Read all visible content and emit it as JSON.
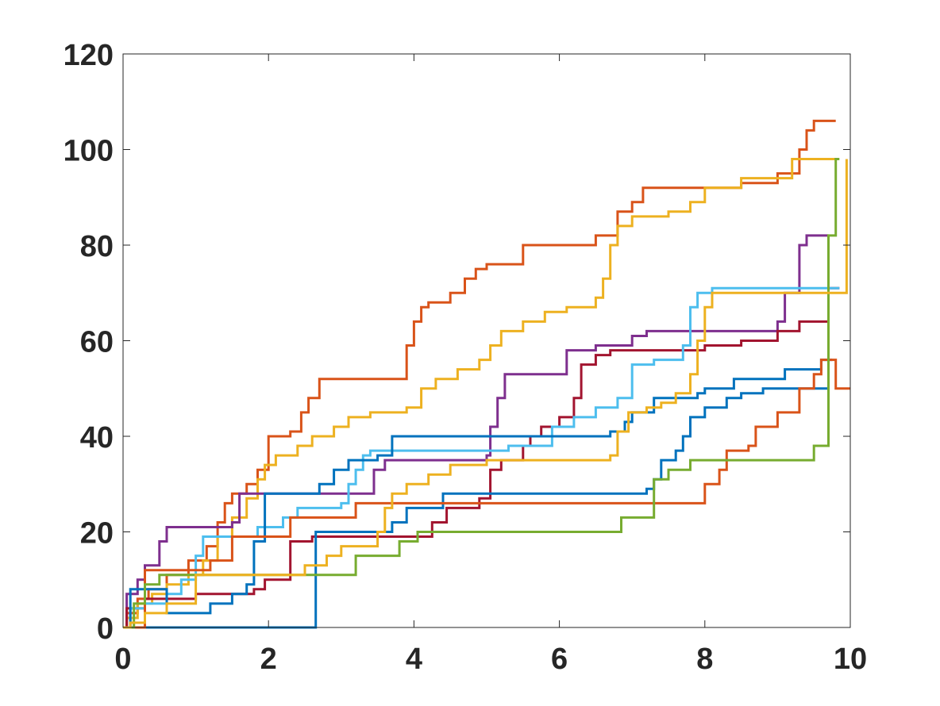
{
  "chart_data": {
    "type": "line",
    "title": "",
    "xlabel": "",
    "ylabel": "",
    "xlim": [
      0,
      10
    ],
    "ylim": [
      0,
      120
    ],
    "grid": false,
    "legend": "none",
    "x_ticks": [
      "0",
      "2",
      "4",
      "6",
      "8",
      "10"
    ],
    "y_ticks": [
      "0",
      "20",
      "40",
      "60",
      "80",
      "100",
      "120"
    ],
    "series": [
      {
        "color": "#D95319",
        "step": true,
        "points": [
          [
            0,
            0
          ],
          [
            0.05,
            3
          ],
          [
            0.2,
            6
          ],
          [
            0.35,
            8
          ],
          [
            0.6,
            11
          ],
          [
            0.9,
            14
          ],
          [
            1.15,
            17
          ],
          [
            1.3,
            22
          ],
          [
            1.4,
            26
          ],
          [
            1.5,
            28
          ],
          [
            1.7,
            30
          ],
          [
            1.85,
            33
          ],
          [
            2.0,
            40
          ],
          [
            2.3,
            41
          ],
          [
            2.45,
            45
          ],
          [
            2.55,
            48
          ],
          [
            2.7,
            52
          ],
          [
            3.35,
            52
          ],
          [
            3.9,
            59
          ],
          [
            4.0,
            64
          ],
          [
            4.1,
            67
          ],
          [
            4.2,
            68
          ],
          [
            4.5,
            70
          ],
          [
            4.7,
            73
          ],
          [
            4.85,
            75
          ],
          [
            5.0,
            76
          ],
          [
            5.5,
            80
          ],
          [
            6.5,
            82
          ],
          [
            6.8,
            87
          ],
          [
            7.0,
            89
          ],
          [
            7.15,
            92
          ],
          [
            7.5,
            92
          ],
          [
            8.5,
            93
          ],
          [
            9.0,
            95
          ],
          [
            9.3,
            100
          ],
          [
            9.4,
            104
          ],
          [
            9.5,
            106
          ],
          [
            9.8,
            106
          ]
        ]
      },
      {
        "color": "#EDB120",
        "step": true,
        "points": [
          [
            0,
            0
          ],
          [
            0.05,
            2
          ],
          [
            0.2,
            5
          ],
          [
            0.4,
            7
          ],
          [
            0.6,
            9
          ],
          [
            0.9,
            11
          ],
          [
            1.1,
            14
          ],
          [
            1.3,
            19
          ],
          [
            1.5,
            23
          ],
          [
            1.7,
            27
          ],
          [
            1.85,
            31
          ],
          [
            1.95,
            34
          ],
          [
            2.1,
            36
          ],
          [
            2.4,
            38
          ],
          [
            2.6,
            40
          ],
          [
            2.9,
            42
          ],
          [
            3.1,
            44
          ],
          [
            3.4,
            45
          ],
          [
            3.9,
            46
          ],
          [
            4.1,
            50
          ],
          [
            4.3,
            52
          ],
          [
            4.6,
            54
          ],
          [
            4.9,
            56
          ],
          [
            5.05,
            59
          ],
          [
            5.2,
            62
          ],
          [
            5.5,
            64
          ],
          [
            5.8,
            66
          ],
          [
            6.1,
            67
          ],
          [
            6.5,
            69
          ],
          [
            6.6,
            73
          ],
          [
            6.7,
            80
          ],
          [
            6.8,
            84
          ],
          [
            7.0,
            86
          ],
          [
            7.5,
            87
          ],
          [
            7.8,
            89
          ],
          [
            8.0,
            92
          ],
          [
            8.5,
            94
          ],
          [
            9.2,
            98
          ],
          [
            9.8,
            98
          ]
        ]
      },
      {
        "color": "#7E2F8E",
        "step": true,
        "points": [
          [
            0,
            0
          ],
          [
            0.05,
            7
          ],
          [
            0.2,
            10
          ],
          [
            0.3,
            13
          ],
          [
            0.5,
            18
          ],
          [
            0.6,
            21
          ],
          [
            1.0,
            21
          ],
          [
            1.5,
            22
          ],
          [
            1.6,
            28
          ],
          [
            1.8,
            28
          ],
          [
            3.3,
            28
          ],
          [
            3.45,
            33
          ],
          [
            3.6,
            35
          ],
          [
            5.0,
            36
          ],
          [
            5.05,
            42
          ],
          [
            5.15,
            48
          ],
          [
            5.25,
            53
          ],
          [
            5.9,
            53
          ],
          [
            6.1,
            58
          ],
          [
            6.5,
            59
          ],
          [
            6.6,
            59
          ],
          [
            7.0,
            61
          ],
          [
            7.2,
            62
          ],
          [
            8.0,
            62
          ],
          [
            9.0,
            64
          ],
          [
            9.1,
            70
          ],
          [
            9.3,
            80
          ],
          [
            9.4,
            82
          ],
          [
            9.7,
            82
          ]
        ]
      },
      {
        "color": "#A2142F",
        "step": true,
        "points": [
          [
            0,
            0
          ],
          [
            0.05,
            4
          ],
          [
            0.3,
            6
          ],
          [
            1.0,
            7
          ],
          [
            1.8,
            8
          ],
          [
            1.95,
            10
          ],
          [
            2.3,
            18
          ],
          [
            2.6,
            19
          ],
          [
            4.1,
            19
          ],
          [
            4.25,
            22
          ],
          [
            4.45,
            25
          ],
          [
            4.9,
            27
          ],
          [
            5.05,
            33
          ],
          [
            5.2,
            35
          ],
          [
            5.5,
            38
          ],
          [
            5.6,
            40
          ],
          [
            5.75,
            42
          ],
          [
            6.0,
            44
          ],
          [
            6.2,
            48
          ],
          [
            6.3,
            55
          ],
          [
            6.5,
            57
          ],
          [
            6.7,
            58
          ],
          [
            7.0,
            58
          ],
          [
            8.0,
            59
          ],
          [
            8.5,
            60
          ],
          [
            9.0,
            62
          ],
          [
            9.3,
            64
          ],
          [
            9.7,
            71
          ],
          [
            9.85,
            71
          ]
        ]
      },
      {
        "color": "#4DBEEE",
        "step": true,
        "points": [
          [
            0,
            0
          ],
          [
            0.1,
            4
          ],
          [
            0.3,
            5
          ],
          [
            0.6,
            7
          ],
          [
            0.8,
            10
          ],
          [
            1.0,
            15
          ],
          [
            1.1,
            19
          ],
          [
            1.7,
            19
          ],
          [
            1.85,
            21
          ],
          [
            2.1,
            21
          ],
          [
            2.2,
            23
          ],
          [
            2.4,
            25
          ],
          [
            3.0,
            26
          ],
          [
            3.1,
            30
          ],
          [
            3.2,
            33
          ],
          [
            3.3,
            36
          ],
          [
            3.4,
            37
          ],
          [
            4.5,
            37
          ],
          [
            5.3,
            38
          ],
          [
            5.9,
            42
          ],
          [
            6.2,
            44
          ],
          [
            6.5,
            46
          ],
          [
            6.8,
            48
          ],
          [
            7.0,
            55
          ],
          [
            7.3,
            56
          ],
          [
            7.7,
            59
          ],
          [
            7.8,
            67
          ],
          [
            7.9,
            70
          ],
          [
            8.1,
            71
          ],
          [
            9.2,
            71
          ],
          [
            9.85,
            71
          ]
        ]
      },
      {
        "color": "#0072BD",
        "step": true,
        "points": [
          [
            0,
            0
          ],
          [
            0.1,
            8
          ],
          [
            0.3,
            8
          ],
          [
            0.6,
            3
          ],
          [
            1.1,
            3
          ],
          [
            1.2,
            5
          ],
          [
            1.5,
            7
          ],
          [
            1.7,
            9
          ],
          [
            1.8,
            18
          ],
          [
            1.95,
            28
          ],
          [
            2.5,
            28
          ],
          [
            2.7,
            30
          ],
          [
            2.9,
            33
          ],
          [
            3.1,
            35
          ],
          [
            3.5,
            36
          ],
          [
            3.7,
            40
          ],
          [
            4.0,
            40
          ],
          [
            6.2,
            40
          ],
          [
            6.5,
            40
          ],
          [
            6.7,
            41
          ],
          [
            6.9,
            43
          ],
          [
            7.0,
            45
          ],
          [
            7.3,
            48
          ],
          [
            7.9,
            49
          ],
          [
            8.0,
            50
          ],
          [
            8.4,
            52
          ],
          [
            9.1,
            54
          ],
          [
            9.6,
            56
          ],
          [
            9.75,
            56
          ]
        ]
      },
      {
        "color": "#0072BD",
        "step": true,
        "points": [
          [
            0,
            0
          ],
          [
            2.65,
            20
          ],
          [
            3.2,
            20
          ],
          [
            3.7,
            22
          ],
          [
            3.9,
            25
          ],
          [
            4.4,
            28
          ],
          [
            5.0,
            28
          ],
          [
            7.0,
            28
          ],
          [
            7.2,
            29
          ],
          [
            7.3,
            31
          ],
          [
            7.4,
            35
          ],
          [
            7.6,
            37
          ],
          [
            7.7,
            40
          ],
          [
            7.8,
            44
          ],
          [
            8.0,
            46
          ],
          [
            8.3,
            48
          ],
          [
            8.5,
            49
          ],
          [
            8.8,
            50
          ],
          [
            9.7,
            50
          ]
        ]
      },
      {
        "color": "#D95319",
        "step": true,
        "points": [
          [
            0,
            0
          ],
          [
            0.3,
            12
          ],
          [
            0.8,
            12
          ],
          [
            1.2,
            14
          ],
          [
            1.5,
            19
          ],
          [
            2.0,
            19
          ],
          [
            2.3,
            23
          ],
          [
            2.7,
            23
          ],
          [
            3.2,
            26
          ],
          [
            4.5,
            26
          ],
          [
            5.0,
            26
          ],
          [
            6.0,
            26
          ],
          [
            7.0,
            26
          ],
          [
            8.0,
            30
          ],
          [
            8.2,
            33
          ],
          [
            8.3,
            37
          ],
          [
            8.6,
            38
          ],
          [
            8.7,
            42
          ],
          [
            8.9,
            42
          ],
          [
            9.0,
            45
          ],
          [
            9.3,
            50
          ],
          [
            9.5,
            53
          ],
          [
            9.6,
            56
          ],
          [
            9.75,
            56
          ],
          [
            9.8,
            50
          ],
          [
            10.0,
            50
          ]
        ]
      },
      {
        "color": "#77AC30",
        "step": true,
        "points": [
          [
            0,
            0
          ],
          [
            0.15,
            5
          ],
          [
            0.3,
            9
          ],
          [
            0.5,
            11
          ],
          [
            1.0,
            11
          ],
          [
            2.3,
            11
          ],
          [
            3.1,
            11
          ],
          [
            3.2,
            15
          ],
          [
            3.7,
            15
          ],
          [
            3.8,
            18
          ],
          [
            4.05,
            20
          ],
          [
            4.9,
            20
          ],
          [
            6.7,
            20
          ],
          [
            6.85,
            23
          ],
          [
            7.2,
            23
          ],
          [
            7.3,
            31
          ],
          [
            7.5,
            33
          ],
          [
            7.8,
            35
          ],
          [
            9.0,
            35
          ],
          [
            9.45,
            35
          ],
          [
            9.5,
            38
          ],
          [
            9.7,
            82
          ],
          [
            9.8,
            98
          ],
          [
            9.85,
            98
          ]
        ]
      },
      {
        "color": "#EDB120",
        "step": true,
        "points": [
          [
            0,
            0
          ],
          [
            0.1,
            1
          ],
          [
            0.3,
            3
          ],
          [
            0.6,
            5
          ],
          [
            1.0,
            11
          ],
          [
            1.9,
            11
          ],
          [
            2.3,
            11
          ],
          [
            2.5,
            13
          ],
          [
            2.8,
            15
          ],
          [
            3.0,
            17
          ],
          [
            3.5,
            20
          ],
          [
            3.6,
            25
          ],
          [
            3.7,
            28
          ],
          [
            3.9,
            30
          ],
          [
            4.2,
            32
          ],
          [
            4.5,
            34
          ],
          [
            5.0,
            35
          ],
          [
            5.5,
            35
          ],
          [
            6.0,
            35
          ],
          [
            6.7,
            36
          ],
          [
            6.8,
            41
          ],
          [
            6.95,
            45
          ],
          [
            7.2,
            46
          ],
          [
            7.4,
            47
          ],
          [
            7.6,
            49
          ],
          [
            7.8,
            53
          ],
          [
            7.9,
            60
          ],
          [
            8.0,
            67
          ],
          [
            8.1,
            70
          ],
          [
            9.0,
            70
          ],
          [
            9.6,
            70
          ],
          [
            9.95,
            98
          ]
        ]
      }
    ]
  }
}
